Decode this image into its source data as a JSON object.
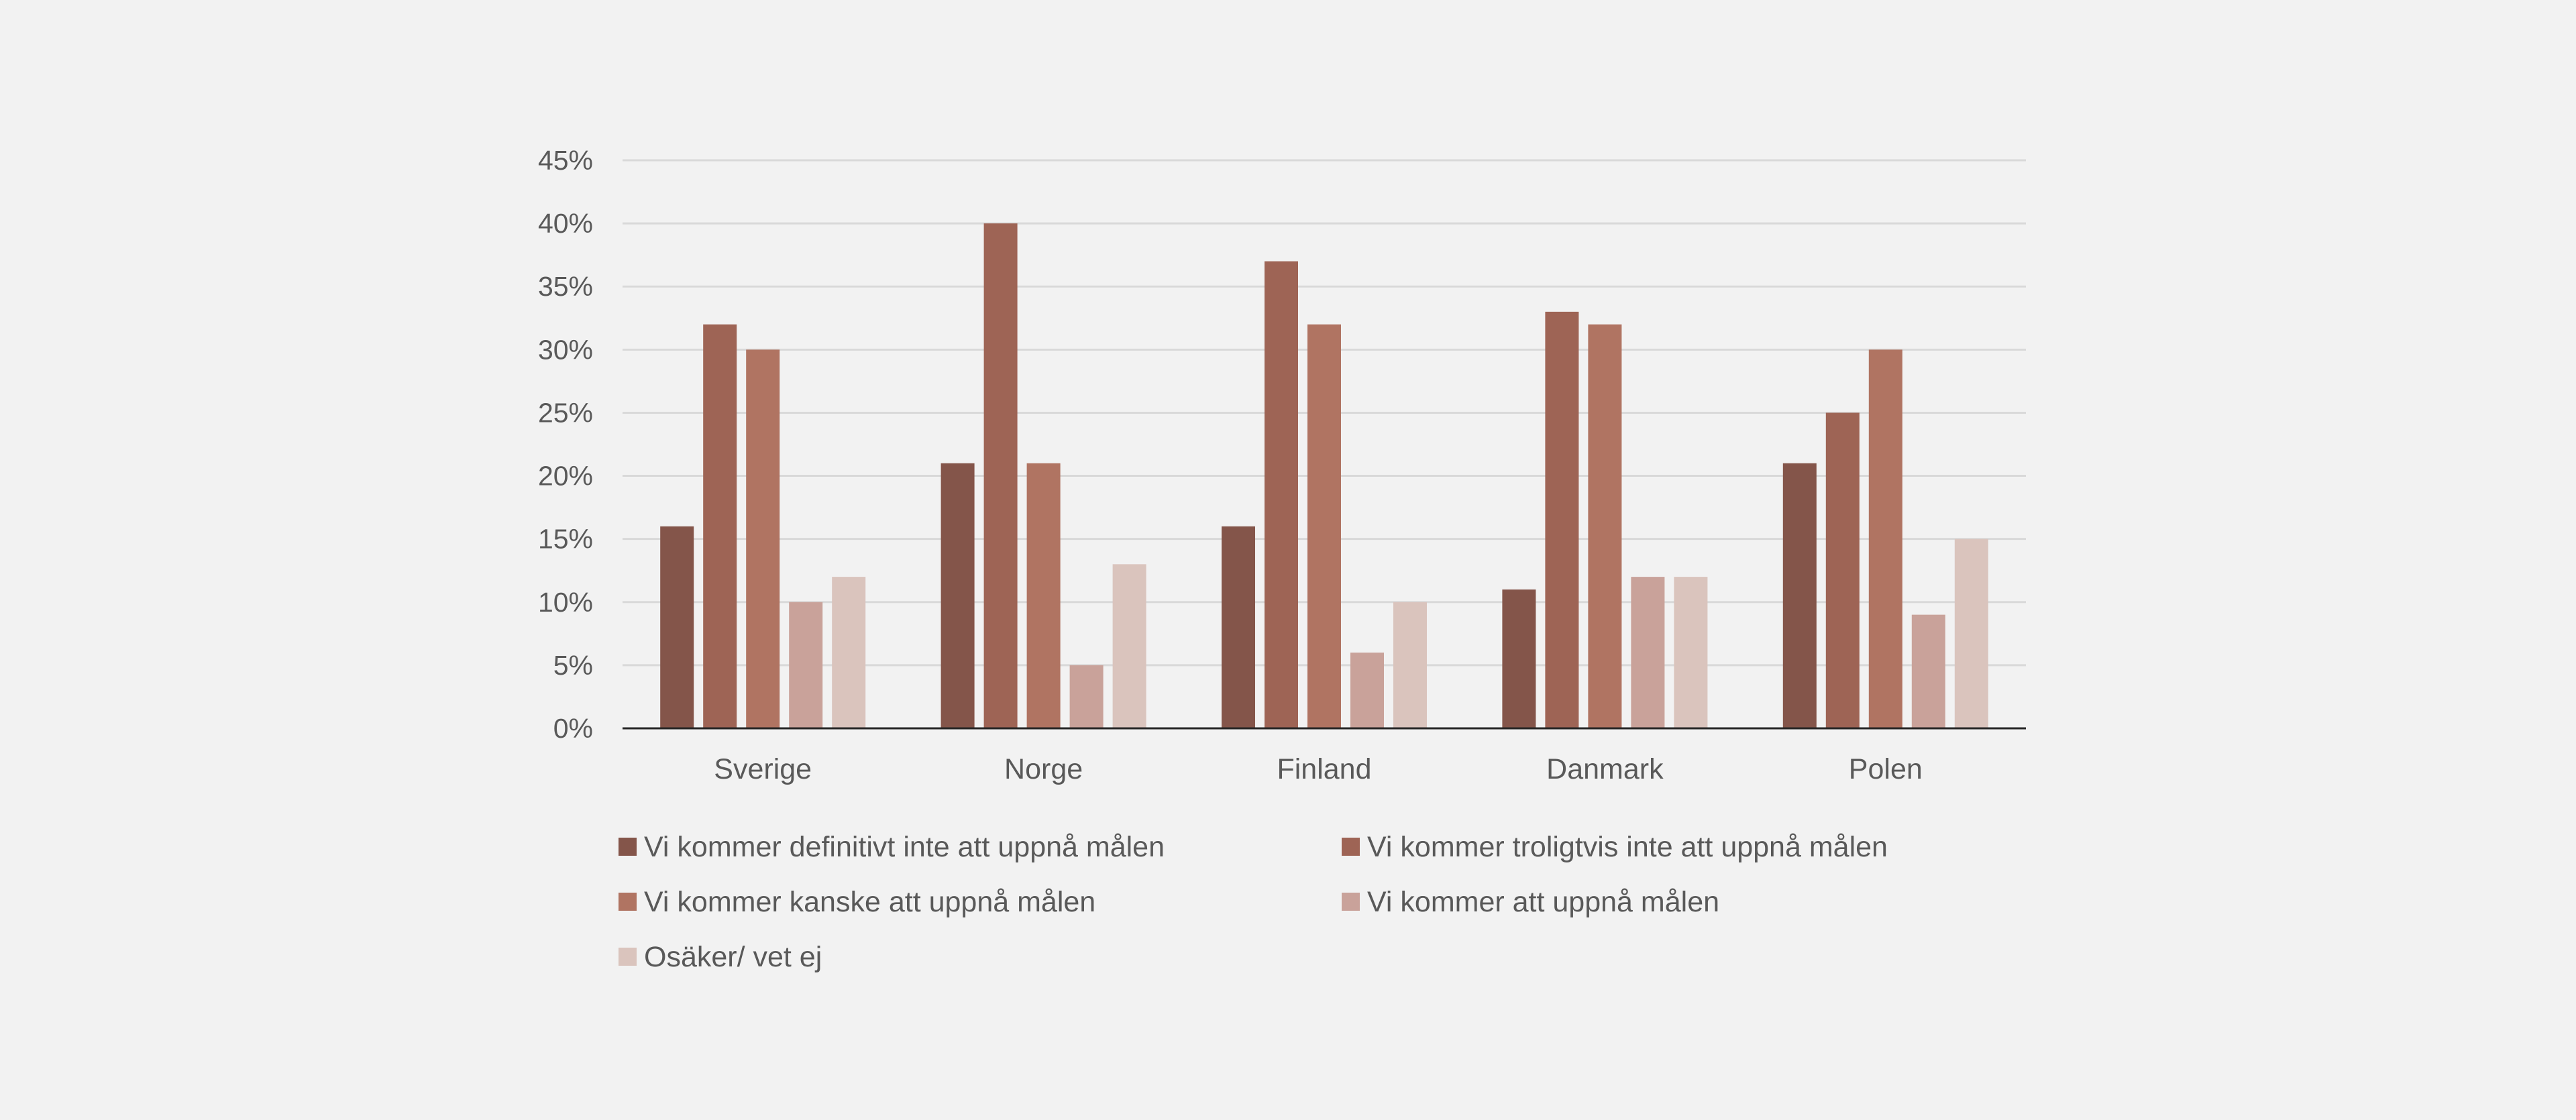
{
  "chart_data": {
    "type": "bar",
    "title": "",
    "xlabel": "",
    "ylabel": "",
    "ylim": [
      0,
      45
    ],
    "ytick_step": 5,
    "ytick_suffix": "%",
    "grid": true,
    "legend_position": "bottom",
    "categories": [
      "Sverige",
      "Norge",
      "Finland",
      "Danmark",
      "Polen"
    ],
    "series": [
      {
        "name": "Vi kommer definitivt inte att uppnå målen",
        "color": "#84554a",
        "values": [
          16,
          21,
          16,
          11,
          21
        ]
      },
      {
        "name": "Vi kommer troligtvis inte att uppnå målen",
        "color": "#9e6455",
        "values": [
          32,
          40,
          37,
          33,
          25
        ]
      },
      {
        "name": "Vi kommer kanske att uppnå målen",
        "color": "#b07462",
        "values": [
          30,
          21,
          32,
          32,
          30
        ]
      },
      {
        "name": "Vi kommer att uppnå målen",
        "color": "#c9a29a",
        "values": [
          10,
          5,
          6,
          12,
          9
        ]
      },
      {
        "name": "Osäker/ vet ej",
        "color": "#dac4bd",
        "values": [
          12,
          13,
          10,
          12,
          15
        ]
      }
    ]
  }
}
